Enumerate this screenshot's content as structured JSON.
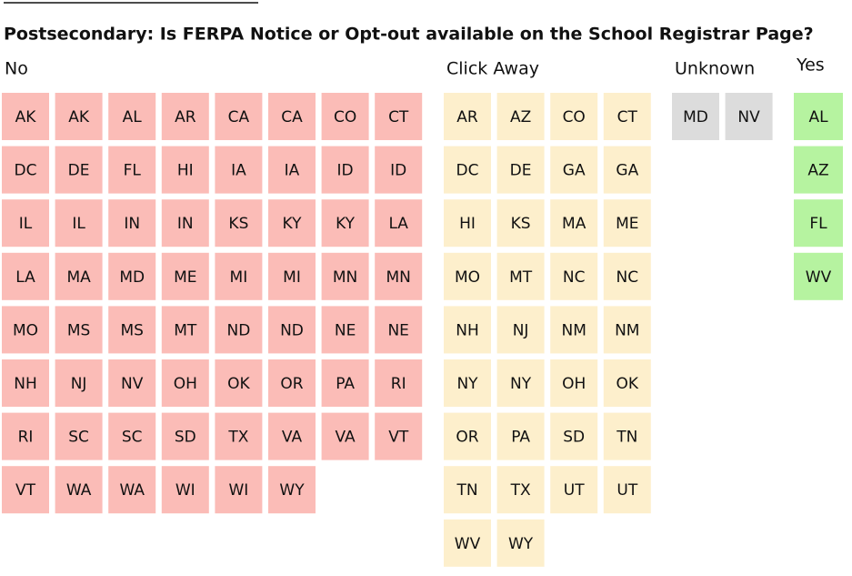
{
  "title": "Postsecondary: Is FERPA Notice or Opt-out available on the School Registrar Page?",
  "groups": [
    {
      "label": "No",
      "color": "#fbbcb7",
      "items": [
        "AK",
        "AK",
        "AL",
        "AR",
        "CA",
        "CA",
        "CO",
        "CT",
        "DC",
        "DE",
        "FL",
        "HI",
        "IA",
        "IA",
        "ID",
        "ID",
        "IL",
        "IL",
        "IN",
        "IN",
        "KS",
        "KY",
        "KY",
        "LA",
        "LA",
        "MA",
        "MD",
        "ME",
        "MI",
        "MI",
        "MN",
        "MN",
        "MO",
        "MS",
        "MS",
        "MT",
        "ND",
        "ND",
        "NE",
        "NE",
        "NH",
        "NJ",
        "NV",
        "OH",
        "OK",
        "OR",
        "PA",
        "RI",
        "RI",
        "SC",
        "SC",
        "SD",
        "TX",
        "VA",
        "VA",
        "VT",
        "VT",
        "WA",
        "WA",
        "WI",
        "WI",
        "WY"
      ]
    },
    {
      "label": "Click Away",
      "color": "#fdefcc",
      "items": [
        "AR",
        "AZ",
        "CO",
        "CT",
        "DC",
        "DE",
        "GA",
        "GA",
        "HI",
        "KS",
        "MA",
        "ME",
        "MO",
        "MT",
        "NC",
        "NC",
        "NH",
        "NJ",
        "NM",
        "NM",
        "NY",
        "NY",
        "OH",
        "OK",
        "OR",
        "PA",
        "SD",
        "TN",
        "TN",
        "TX",
        "UT",
        "UT",
        "WV",
        "WY"
      ]
    },
    {
      "label": "Unknown",
      "color": "#dcdcdc",
      "items": [
        "MD",
        "NV"
      ]
    },
    {
      "label": "Yes",
      "color": "#b6f3a0",
      "items": [
        "AL",
        "AZ",
        "FL",
        "WV"
      ]
    }
  ]
}
